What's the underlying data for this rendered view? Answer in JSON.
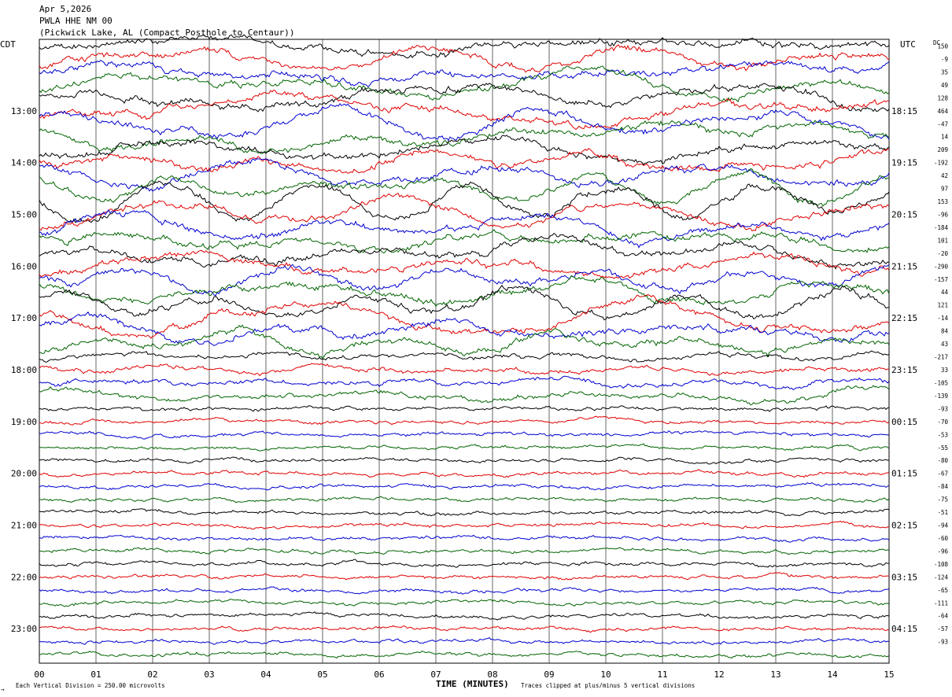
{
  "header": {
    "date": "Apr 5,2026",
    "station": "PWLA HHE NM 00",
    "location": "(Pickwick Lake, AL (Compact Posthole to Centaur))",
    "left_tz": "CDT",
    "right_tz": "UTC",
    "dc_header": "DC"
  },
  "footer": {
    "xlabel": "TIME (MINUTES)",
    "scale_note": "Each Vertical Division =  250.00 microvolts",
    "clip_note": "Traces clipped at plus/minus 5 vertical divisions",
    "corner_mark": "→"
  },
  "colors": {
    "trace_cycle": [
      "#000000",
      "#e00000",
      "#0000d0",
      "#006400"
    ],
    "grid": "#000000",
    "background": "#ffffff"
  },
  "chart_data": {
    "type": "line",
    "title": "PWLA HHE NM 00",
    "xlabel": "TIME (MINUTES)",
    "x_ticks": [
      "00",
      "01",
      "02",
      "03",
      "04",
      "05",
      "06",
      "07",
      "08",
      "09",
      "10",
      "11",
      "12",
      "13",
      "14",
      "15"
    ],
    "xlim": [
      0,
      15
    ],
    "grid": true,
    "left_time_labels": [
      "13:00",
      "14:00",
      "15:00",
      "16:00",
      "17:00",
      "18:00",
      "19:00",
      "20:00",
      "21:00",
      "22:00",
      "23:00"
    ],
    "right_time_labels": [
      "18:15",
      "19:15",
      "20:15",
      "21:15",
      "22:15",
      "23:15",
      "00:15",
      "01:15",
      "02:15",
      "03:15",
      "04:15"
    ],
    "trace_count": 48,
    "traces_per_hour": 4,
    "first_labeled_trace_index": 5,
    "dc_offsets": [
      "150",
      "-9",
      "35",
      "49",
      "128",
      "464",
      "-47",
      "14",
      "209",
      "-192",
      "42",
      "97",
      "153",
      "-96",
      "-184",
      "101",
      "-20",
      "-290",
      "-157",
      "44",
      "121",
      "-14",
      "84",
      "43",
      "-217",
      "33",
      "-105",
      "-139",
      "-93",
      "-70",
      "-53",
      "-55",
      "-80",
      "-67",
      "-84",
      "-75",
      "-51",
      "-94",
      "-60",
      "-96",
      "-108",
      "-124",
      "-65",
      "-111",
      "-64",
      "-57",
      "-93"
    ],
    "amplitude_profile": {
      "very_high_traces": [
        0,
        1,
        2,
        3,
        4,
        5,
        6,
        7,
        8,
        9,
        10,
        11,
        12,
        13,
        14,
        15,
        16,
        17,
        18,
        19,
        20,
        21,
        22,
        23
      ],
      "moderate_traces": [
        24,
        25,
        26,
        27
      ],
      "low_traces": [
        28,
        29,
        30,
        31,
        32,
        33,
        34,
        35,
        36,
        37,
        38,
        39,
        40,
        41,
        42,
        43,
        44,
        45,
        46
      ]
    }
  }
}
